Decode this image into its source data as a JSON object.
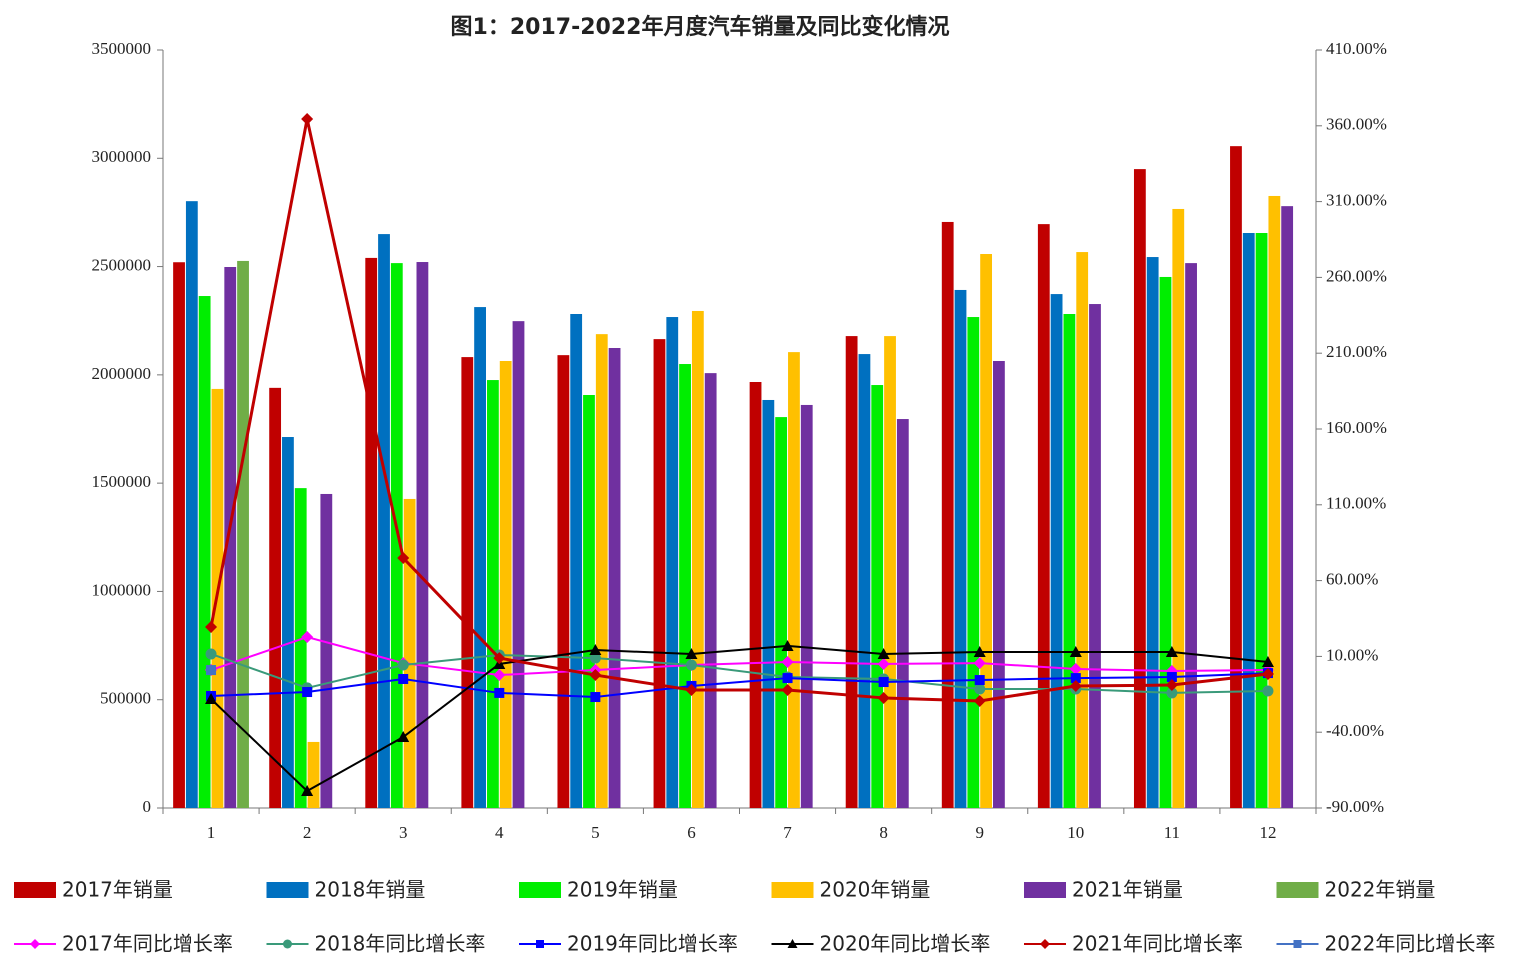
{
  "chart_data": {
    "type": "bar",
    "title": "图1：2017-2022年月度汽车销量及同比变化情况",
    "categories": [
      "1",
      "2",
      "3",
      "4",
      "5",
      "6",
      "7",
      "8",
      "9",
      "10",
      "11",
      "12"
    ],
    "ylim": [
      0,
      3500000
    ],
    "yticks": [
      0,
      500000,
      1000000,
      1500000,
      2000000,
      2500000,
      3000000,
      3500000
    ],
    "y2lim": [
      -90,
      410
    ],
    "y2ticks": [
      {
        "value": -90,
        "label": "-90.00%"
      },
      {
        "value": -40,
        "label": "-40.00%"
      },
      {
        "value": 10,
        "label": "10.00%"
      },
      {
        "value": 60,
        "label": "60.00%"
      },
      {
        "value": 110,
        "label": "110.00%"
      },
      {
        "value": 160,
        "label": "160.00%"
      },
      {
        "value": 210,
        "label": "210.00%"
      },
      {
        "value": 260,
        "label": "260.00%"
      },
      {
        "value": 310,
        "label": "310.00%"
      },
      {
        "value": 360,
        "label": "360.00%"
      },
      {
        "value": 410,
        "label": "410.00%"
      }
    ],
    "series": [
      {
        "name": "2017年销量",
        "type": "bar",
        "color": "#c00000",
        "values": [
          2520000,
          1940000,
          2540000,
          2082000,
          2091000,
          2165000,
          1967000,
          2179000,
          2706000,
          2696000,
          2950000,
          3056000
        ]
      },
      {
        "name": "2018年销量",
        "type": "bar",
        "color": "#0070c0",
        "values": [
          2802000,
          1713000,
          2650000,
          2313000,
          2281000,
          2267000,
          1884000,
          2096000,
          2392000,
          2373000,
          2544000,
          2655000
        ]
      },
      {
        "name": "2019年销量",
        "type": "bar",
        "color": "#00ee00",
        "values": [
          2364000,
          1477000,
          2516000,
          1976000,
          1907000,
          2050000,
          1805000,
          1953000,
          2267000,
          2281000,
          2452000,
          2655000
        ]
      },
      {
        "name": "2020年销量",
        "type": "bar",
        "color": "#ffc000",
        "values": [
          1935000,
          305000,
          1427000,
          2064000,
          2188000,
          2295000,
          2105000,
          2179000,
          2558000,
          2567000,
          2766000,
          2826000
        ]
      },
      {
        "name": "2021年销量",
        "type": "bar",
        "color": "#7030a0",
        "values": [
          2498000,
          1450000,
          2521000,
          2248000,
          2124000,
          2008000,
          1861000,
          1796000,
          2064000,
          2327000,
          2516000,
          2779000
        ]
      },
      {
        "name": "2022年销量",
        "type": "bar",
        "color": "#70ad47",
        "values": [
          2526000,
          null,
          null,
          null,
          null,
          null,
          null,
          null,
          null,
          null,
          null,
          null
        ]
      },
      {
        "name": "2017年同比增长率",
        "type": "line",
        "axis": "y2",
        "marker": "diamond",
        "color": "#ff00ff",
        "values": [
          1.0,
          22.8,
          5.6,
          -2.3,
          1.0,
          4.3,
          6.3,
          5.0,
          5.6,
          1.7,
          0.4,
          1.0
        ]
      },
      {
        "name": "2018年同比增长率",
        "type": "line",
        "axis": "y2",
        "marker": "circle",
        "color": "#3a9a7a",
        "values": [
          11.6,
          -10.8,
          4.3,
          10.9,
          8.9,
          4.3,
          -3.6,
          -4.9,
          -11.5,
          -11.5,
          -14.1,
          -12.8
        ]
      },
      {
        "name": "2019年同比增长率",
        "type": "line",
        "axis": "y2",
        "marker": "square",
        "color": "#0000ff",
        "values": [
          -16.1,
          -13.5,
          -4.9,
          -14.1,
          -16.8,
          -9.5,
          -4.3,
          -6.9,
          -5.6,
          -4.3,
          -3.6,
          -1.0
        ]
      },
      {
        "name": "2020年同比增长率",
        "type": "line",
        "axis": "y2",
        "marker": "triangle",
        "color": "#000000",
        "values": [
          -18.1,
          -78.8,
          -43.2,
          5.0,
          14.2,
          11.6,
          16.9,
          11.6,
          12.9,
          12.9,
          12.9,
          6.3
        ]
      },
      {
        "name": "2021年同比增长率",
        "type": "line",
        "axis": "y2",
        "marker": "diamond",
        "color": "#c00000",
        "values": [
          29.4,
          364.5,
          74.9,
          8.9,
          -2.3,
          -12.2,
          -12.2,
          -17.4,
          -19.4,
          -9.5,
          -8.9,
          -1.6
        ]
      },
      {
        "name": "2022年同比增长率",
        "type": "line",
        "axis": "y2",
        "marker": "square",
        "color": "#4472c4",
        "values": [
          1.0,
          null,
          null,
          null,
          null,
          null,
          null,
          null,
          null,
          null,
          null,
          null
        ]
      }
    ]
  }
}
